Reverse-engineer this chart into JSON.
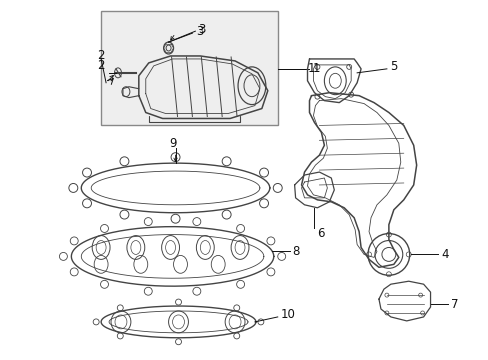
{
  "background_color": "#ffffff",
  "line_color": "#444444",
  "text_color": "#111111",
  "box_fill": "#eeeeee",
  "box_border": "#888888",
  "fig_width": 4.89,
  "fig_height": 3.6,
  "dpi": 100
}
